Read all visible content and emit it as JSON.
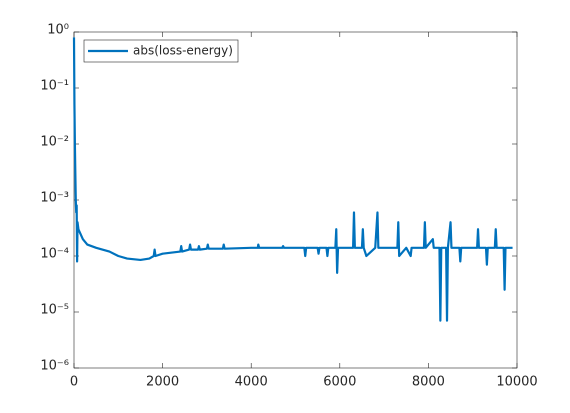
{
  "chart_data": {
    "type": "line",
    "yscale": "log",
    "legend": "northwest",
    "x": [
      0,
      10,
      20,
      30,
      40,
      50,
      60,
      70,
      80,
      100,
      200,
      300,
      500,
      800,
      1000,
      1200,
      1500,
      1700,
      1800,
      1820,
      1840,
      2000,
      2400,
      2420,
      2440,
      2600,
      2620,
      2640,
      2800,
      2820,
      2840,
      3000,
      3020,
      3040,
      3360,
      3380,
      3400,
      4000,
      4150,
      4160,
      4180,
      4700,
      4720,
      4740,
      5200,
      5220,
      5240,
      5500,
      5520,
      5540,
      5700,
      5720,
      5740,
      5900,
      5920,
      5940,
      5960,
      6300,
      6320,
      6340,
      6500,
      6520,
      6540,
      6600,
      6800,
      6850,
      6870,
      7000,
      7300,
      7320,
      7340,
      7500,
      7600,
      7620,
      7900,
      7920,
      7940,
      8100,
      8120,
      8250,
      8270,
      8290,
      8400,
      8420,
      8440,
      8500,
      8520,
      8700,
      8720,
      8740,
      9100,
      9120,
      9140,
      9300,
      9320,
      9340,
      9500,
      9520,
      9540,
      9700,
      9720,
      9740,
      9900
    ],
    "series": [
      {
        "name": "abs(loss-energy)",
        "color": "#0072bd",
        "values": [
          0.8,
          0.05,
          0.01,
          0.003,
          0.001,
          0.0006,
          0.0008,
          8e-05,
          0.0004,
          0.0003,
          0.0002,
          0.00016,
          0.00014,
          0.00012,
          0.0001,
          9e-05,
          8.5e-05,
          9e-05,
          0.0001,
          0.00013,
          0.0001,
          0.00011,
          0.00012,
          0.00015,
          0.00012,
          0.00013,
          0.00016,
          0.00013,
          0.00013,
          0.00015,
          0.00013,
          0.000135,
          0.00016,
          0.000135,
          0.000135,
          0.00016,
          0.000135,
          0.00014,
          0.00014,
          0.00016,
          0.00014,
          0.00014,
          0.00015,
          0.00014,
          0.00014,
          0.0001,
          0.00014,
          0.00014,
          0.00011,
          0.00014,
          0.00014,
          0.0001,
          0.00014,
          0.00014,
          0.0003,
          5e-05,
          0.00014,
          0.00014,
          0.0006,
          0.00014,
          0.00014,
          0.0003,
          0.00014,
          0.0001,
          0.00014,
          0.0006,
          0.00014,
          0.00014,
          0.00014,
          0.0004,
          0.0001,
          0.00014,
          0.0001,
          0.00014,
          0.00014,
          0.0004,
          0.00014,
          0.0002,
          0.00014,
          0.00014,
          7e-06,
          0.00014,
          0.00014,
          7e-06,
          0.00014,
          0.0004,
          0.00014,
          0.00014,
          8e-05,
          0.00014,
          0.00014,
          0.0003,
          0.00014,
          0.00014,
          7e-05,
          0.00014,
          0.00014,
          0.0003,
          0.00014,
          0.00014,
          2.5e-05,
          0.00014,
          0.00014
        ]
      }
    ],
    "xlim": [
      0,
      10000
    ],
    "xticks": [
      0,
      2000,
      4000,
      6000,
      8000,
      10000
    ],
    "ylim": [
      1e-06,
      1
    ],
    "yticks": [
      {
        "value": 1e-06,
        "label": "10⁻⁶"
      },
      {
        "value": 1e-05,
        "label": "10⁻⁵"
      },
      {
        "value": 0.0001,
        "label": "10⁻⁴"
      },
      {
        "value": 0.001,
        "label": "10⁻³"
      },
      {
        "value": 0.01,
        "label": "10⁻²"
      },
      {
        "value": 0.1,
        "label": "10⁻¹"
      },
      {
        "value": 1,
        "label": "10⁰"
      }
    ]
  }
}
